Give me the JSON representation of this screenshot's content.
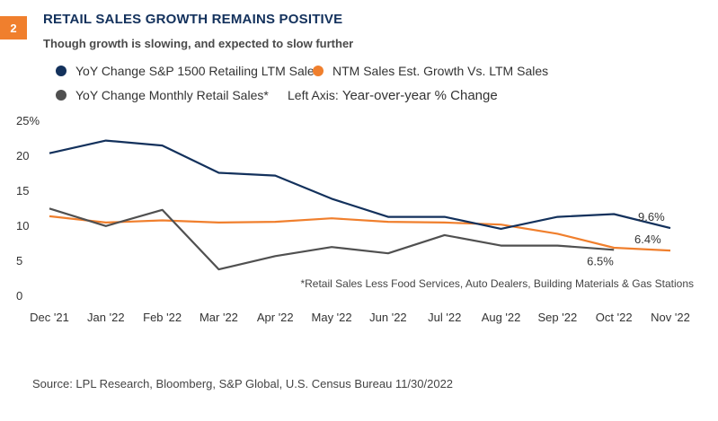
{
  "header": {
    "badge": "2",
    "title": "RETAIL SALES GROWTH REMAINS POSITIVE",
    "subtitle": "Though growth is slowing, and expected to slow further"
  },
  "axis_note": {
    "label": "Left Axis:",
    "value": "Year-over-year % Change"
  },
  "footnote": "*Retail Sales Less Food Services, Auto Dealers, Building Materials & Gas Stations",
  "source": "Source: LPL Research, Bloomberg, S&P Global, U.S. Census Bureau  11/30/2022",
  "chart_data": {
    "type": "line",
    "categories": [
      "Dec '21",
      "Jan '22",
      "Feb '22",
      "Mar '22",
      "Apr '22",
      "May '22",
      "Jun '22",
      "Jul '22",
      "Aug '22",
      "Sep '22",
      "Oct '22",
      "Nov '22"
    ],
    "ylim": [
      0,
      25
    ],
    "yticks": [
      "0",
      "5",
      "10",
      "15",
      "20",
      "25%"
    ],
    "grid": false,
    "legend": "top-left",
    "series": [
      {
        "name": "YoY Change S&P 1500 Retailing LTM Sales",
        "color": "#13315c",
        "values": [
          20.3,
          22.1,
          21.4,
          17.5,
          17.1,
          13.8,
          11.2,
          11.2,
          9.5,
          11.2,
          11.6,
          9.6
        ],
        "end_label": "9.6%"
      },
      {
        "name": "NTM Sales Est. Growth Vs. LTM Sales",
        "color": "#f07f2d",
        "values": [
          11.3,
          10.4,
          10.7,
          10.4,
          10.5,
          11.0,
          10.5,
          10.4,
          10.1,
          8.8,
          6.8,
          6.4
        ],
        "end_label": "6.4%"
      },
      {
        "name": "YoY Change Monthly Retail Sales*",
        "color": "#505050",
        "values": [
          12.4,
          9.9,
          12.2,
          3.7,
          5.6,
          6.9,
          6.0,
          8.6,
          7.1,
          7.1,
          6.5,
          null
        ],
        "end_label": "6.5%"
      }
    ]
  }
}
